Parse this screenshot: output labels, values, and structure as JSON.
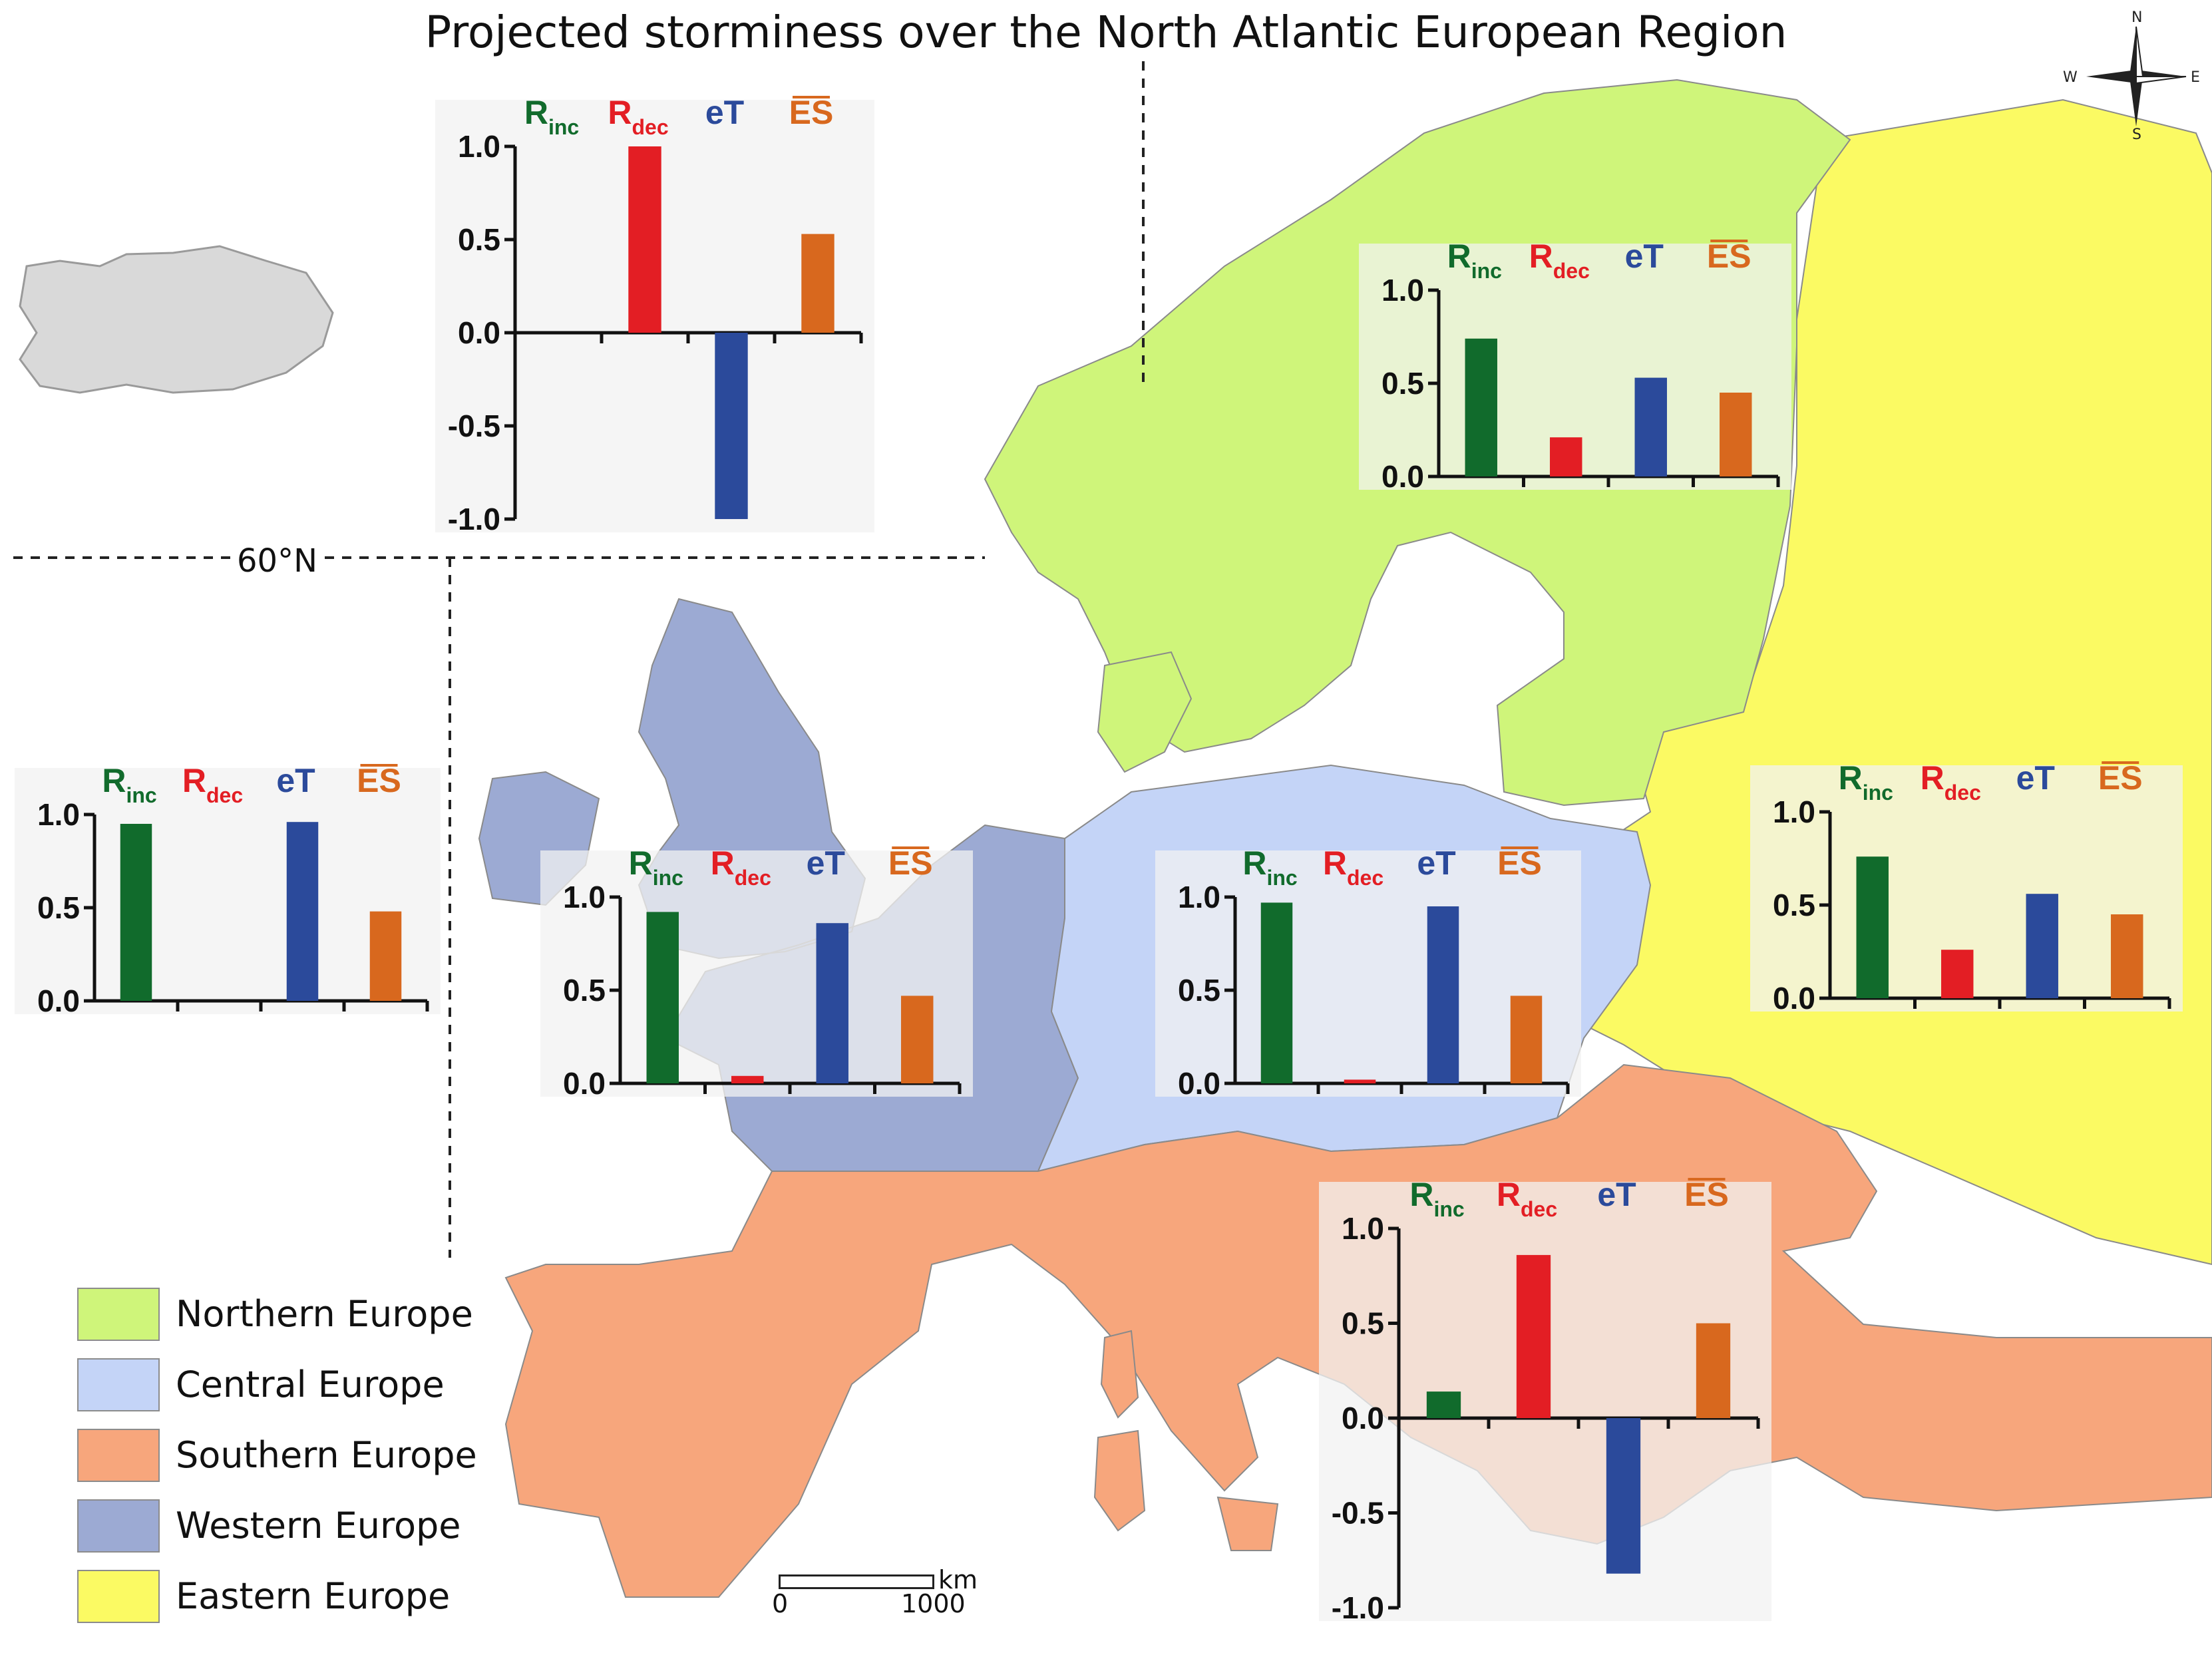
{
  "title": "Projected storminess over the North Atlantic European Region",
  "latitude_label": "60°N",
  "compass": {
    "n": "N",
    "s": "S",
    "e": "E",
    "w": "W"
  },
  "scale_bar": {
    "unit": "km",
    "start": "0",
    "end": "1000"
  },
  "colors": {
    "northern": "#cff57a",
    "central": "#c4d4f7",
    "southern": "#f7a67c",
    "western": "#9caad3",
    "eastern": "#fbfa63",
    "iceland": "#d9d9d9",
    "sea": "#ffffff",
    "r_inc": "#116b2c",
    "r_dec": "#e31e24",
    "eT": "#2b4a9b",
    "ES": "#d8681e"
  },
  "legend": [
    {
      "label": "Northern Europe",
      "color_key": "northern"
    },
    {
      "label": "Central Europe",
      "color_key": "central"
    },
    {
      "label": "Southern Europe",
      "color_key": "southern"
    },
    {
      "label": "Western Europe",
      "color_key": "western"
    },
    {
      "label": "Eastern Europe",
      "color_key": "eastern"
    }
  ],
  "chart_data": [
    {
      "type": "bar",
      "region": "north-atlantic",
      "categories": [
        "R_inc",
        "R_dec",
        "eT",
        "ES"
      ],
      "values": [
        0,
        1.0,
        -1.0,
        0.53
      ],
      "ylim": [
        -1.0,
        1.0
      ],
      "yticks": [
        "1.0",
        "0.5",
        "0.0",
        "-0.5",
        "-1.0"
      ]
    },
    {
      "type": "bar",
      "region": "northern-europe",
      "categories": [
        "R_inc",
        "R_dec",
        "eT",
        "ES"
      ],
      "values": [
        0.74,
        0.21,
        0.53,
        0.45
      ],
      "ylim": [
        0.0,
        1.0
      ],
      "yticks": [
        "1.0",
        "0.5",
        "0.0"
      ]
    },
    {
      "type": "bar",
      "region": "western-europe-ocean",
      "categories": [
        "R_inc",
        "R_dec",
        "eT",
        "ES"
      ],
      "values": [
        0.95,
        0,
        0.96,
        0.48
      ],
      "ylim": [
        0.0,
        1.0
      ],
      "yticks": [
        "1.0",
        "0.5",
        "0.0"
      ]
    },
    {
      "type": "bar",
      "region": "western-europe",
      "categories": [
        "R_inc",
        "R_dec",
        "eT",
        "ES"
      ],
      "values": [
        0.92,
        0.04,
        0.86,
        0.47
      ],
      "ylim": [
        0.0,
        1.0
      ],
      "yticks": [
        "1.0",
        "0.5",
        "0.0"
      ]
    },
    {
      "type": "bar",
      "region": "central-europe",
      "categories": [
        "R_inc",
        "R_dec",
        "eT",
        "ES"
      ],
      "values": [
        0.97,
        0.02,
        0.95,
        0.47
      ],
      "ylim": [
        0.0,
        1.0
      ],
      "yticks": [
        "1.0",
        "0.5",
        "0.0"
      ]
    },
    {
      "type": "bar",
      "region": "eastern-europe",
      "categories": [
        "R_inc",
        "R_dec",
        "eT",
        "ES"
      ],
      "values": [
        0.76,
        0.26,
        0.56,
        0.45
      ],
      "ylim": [
        0.0,
        1.0
      ],
      "yticks": [
        "1.0",
        "0.5",
        "0.0"
      ]
    },
    {
      "type": "bar",
      "region": "southern-europe",
      "categories": [
        "R_inc",
        "R_dec",
        "eT",
        "ES"
      ],
      "values": [
        0.14,
        0.86,
        -0.82,
        0.5
      ],
      "ylim": [
        -1.0,
        1.0
      ],
      "yticks": [
        "1.0",
        "0.5",
        "0.0",
        "-0.5",
        "-1.0"
      ]
    }
  ],
  "chart_header": {
    "r_inc": {
      "main": "R",
      "sub": "inc"
    },
    "r_dec": {
      "main": "R",
      "sub": "dec"
    },
    "eT": {
      "main": "eT"
    },
    "ES": {
      "main": "ES"
    }
  }
}
